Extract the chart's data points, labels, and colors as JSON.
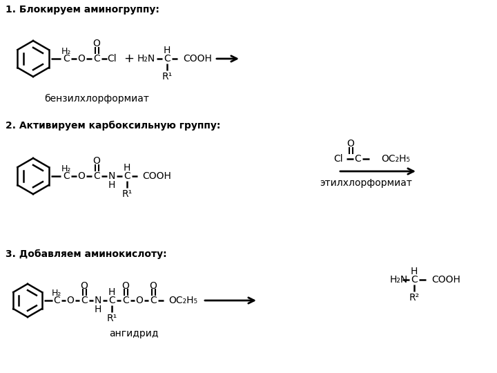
{
  "bg_color": "#ffffff",
  "text_color": "#000000",
  "fig_width": 7.2,
  "fig_height": 5.4,
  "dpi": 100,
  "step1_title": "1. Блокируем аминогруппу:",
  "step2_title": "2. Активируем карбоксильную группу:",
  "step3_title": "3. Добавляем аминокислоту:",
  "label_benzylchloroformate": "бензилхлорформиат",
  "label_ethylchloroformate": "этилхлорформиат",
  "label_anhydride": "ангидрид",
  "font_size_title": 10,
  "font_size_chem": 10,
  "font_size_sub": 8,
  "font_size_label": 10
}
